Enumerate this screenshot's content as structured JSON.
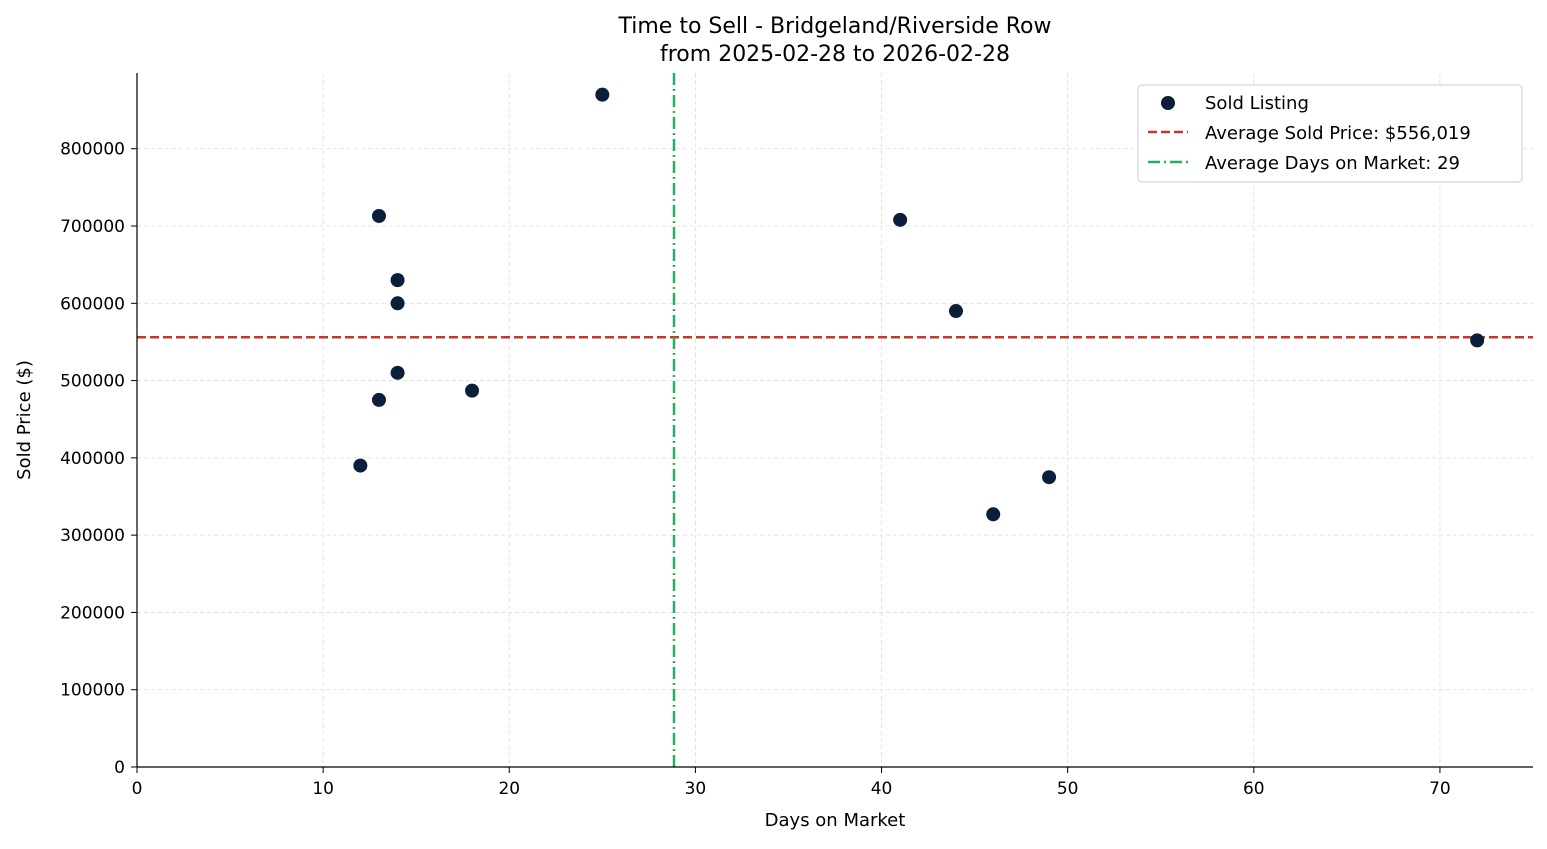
{
  "chart_data": {
    "type": "scatter",
    "title": "Time to Sell - Bridgeland/Riverside Row",
    "subtitle": "from 2025-02-28 to 2026-02-28",
    "xlabel": "Days on Market",
    "ylabel": "Sold Price ($)",
    "xlim": [
      0,
      75
    ],
    "ylim": [
      0,
      898000
    ],
    "x_ticks": [
      0,
      10,
      20,
      30,
      40,
      50,
      60,
      70
    ],
    "y_ticks": [
      0,
      100000,
      200000,
      300000,
      400000,
      500000,
      600000,
      700000,
      800000
    ],
    "grid": true,
    "legend_position": "top-right",
    "series": [
      {
        "name": "Sold Listing",
        "color": "#0b1f3a",
        "x": [
          12,
          13,
          13,
          14,
          14,
          14,
          18,
          25,
          41,
          44,
          46,
          49,
          72
        ],
        "y": [
          390000,
          713000,
          475000,
          630000,
          600000,
          510000,
          487000,
          870000,
          708000,
          590000,
          327000,
          375000,
          552000
        ]
      }
    ],
    "reference_lines": [
      {
        "name": "Average Sold Price: $556,019",
        "orientation": "horizontal",
        "value": 556019,
        "color": "#c0392b",
        "style": "dashed"
      },
      {
        "name": "Average Days on Market: 29",
        "orientation": "vertical",
        "value": 28.85,
        "color": "#27ae60",
        "style": "dashdot"
      }
    ]
  }
}
